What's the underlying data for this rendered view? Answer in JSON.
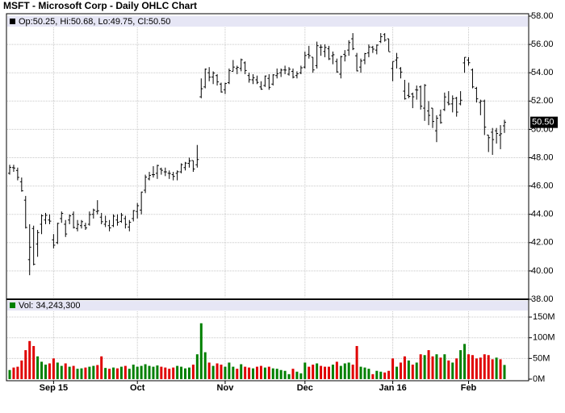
{
  "chart_data": [
    {
      "type": "ohlc",
      "title": "MSFT - Microsoft Corp - Daily OHLC Chart",
      "legend": "Op:50.25, Hi:50.68, Lo:49.75, Cl:50.50",
      "color": "#000000",
      "open": [
        46.9,
        47.3,
        47.1,
        46.3,
        45.0,
        40.8,
        43.0,
        41.9,
        43.3,
        43.6,
        43.6,
        42.2,
        42.0,
        43.7,
        43.3,
        43.6,
        44.0,
        43.0,
        43.2,
        43.2,
        43.3,
        44.0,
        44.2,
        43.8,
        43.3,
        43.2,
        43.2,
        43.6,
        43.5,
        43.7,
        43.1,
        43.7,
        44.2,
        44.3,
        45.7,
        46.5,
        46.8,
        46.9,
        47.2,
        47.0,
        46.9,
        46.8,
        46.9,
        47.0,
        47.3,
        47.6,
        47.8,
        47.5,
        52.3,
        53.0,
        54.0,
        53.7,
        53.8,
        53.2,
        52.8,
        53.3,
        54.1,
        54.3,
        54.3,
        54.7,
        53.8,
        53.5,
        53.5,
        53.0,
        53.1,
        53.6,
        53.2,
        53.8,
        54.0,
        54.2,
        53.9,
        54.1,
        53.8,
        54.0,
        54.4,
        55.3,
        55.1,
        54.5,
        55.8,
        55.5,
        55.7,
        55.2,
        54.8,
        53.9,
        55.3,
        55.6,
        56.4,
        55.2,
        54.4,
        54.9,
        55.4,
        55.8,
        55.6,
        56.2,
        56.7,
        56.4,
        54.3,
        54.9,
        54.3,
        52.7,
        52.4,
        52.5,
        52.8,
        53.0,
        51.5,
        51.3,
        51.5,
        49.9,
        51.0,
        51.4,
        51.9,
        51.8,
        52.2,
        51.8,
        54.7,
        54.9,
        54.2,
        52.9,
        51.9,
        52.0,
        49.6,
        49.8,
        49.9,
        49.6,
        50.25
      ],
      "high": [
        47.5,
        47.5,
        47.3,
        46.6,
        45.3,
        43.3,
        43.2,
        42.9,
        44.0,
        44.1,
        44.0,
        42.6,
        43.4,
        44.2,
        43.6,
        44.0,
        44.2,
        43.6,
        43.6,
        43.4,
        44.2,
        44.4,
        45.0,
        44.1,
        43.9,
        43.6,
        44.0,
        44.0,
        44.1,
        43.9,
        43.6,
        44.3,
        44.8,
        45.6,
        46.8,
        47.0,
        47.4,
        47.5,
        47.3,
        47.3,
        47.1,
        47.0,
        47.1,
        47.6,
        47.7,
        48.0,
        47.8,
        48.9,
        53.6,
        54.3,
        54.4,
        54.1,
        53.9,
        53.3,
        53.3,
        54.3,
        54.9,
        54.5,
        55.0,
        54.8,
        54.0,
        53.9,
        53.8,
        53.4,
        53.8,
        53.9,
        53.9,
        54.3,
        54.3,
        54.5,
        54.4,
        54.3,
        54.1,
        54.5,
        55.5,
        55.9,
        55.1,
        56.2,
        56.0,
        56.0,
        55.9,
        55.5,
        55.0,
        55.2,
        55.6,
        56.3,
        56.8,
        55.4,
        55.0,
        55.4,
        56.0,
        55.9,
        56.0,
        56.8,
        56.8,
        56.4,
        54.8,
        55.4,
        54.4,
        53.5,
        53.3,
        52.6,
        53.1,
        53.1,
        53.2,
        52.0,
        51.5,
        51.0,
        51.4,
        52.6,
        52.7,
        52.4,
        52.3,
        52.7,
        55.1,
        55.1,
        54.3,
        53.0,
        52.1,
        52.1,
        49.6,
        50.1,
        50.1,
        50.3,
        50.68
      ],
      "low": [
        46.8,
        47.0,
        46.4,
        45.6,
        43.0,
        39.7,
        40.4,
        41.0,
        42.6,
        43.3,
        43.3,
        41.6,
        41.9,
        43.4,
        42.4,
        43.3,
        43.0,
        42.8,
        43.0,
        42.9,
        43.2,
        43.7,
        44.0,
        43.3,
        43.1,
        42.8,
        43.1,
        43.2,
        43.4,
        43.0,
        42.8,
        43.5,
        43.7,
        44.0,
        45.5,
        46.4,
        46.6,
        46.5,
        46.8,
        46.7,
        46.5,
        46.4,
        46.4,
        46.9,
        47.1,
        47.3,
        47.0,
        47.3,
        52.2,
        52.9,
        53.4,
        53.2,
        53.1,
        52.6,
        52.5,
        53.2,
        54.1,
        53.9,
        54.1,
        53.9,
        53.3,
        53.2,
        53.2,
        52.8,
        53.0,
        52.8,
        53.1,
        53.6,
        53.7,
        53.9,
        53.8,
        53.6,
        53.6,
        53.9,
        54.3,
        55.0,
        54.0,
        54.3,
        55.2,
        55.1,
        54.9,
        54.6,
        54.0,
        53.6,
        54.8,
        55.2,
        55.6,
        54.1,
        54.0,
        54.6,
        55.1,
        55.4,
        55.3,
        56.1,
        56.2,
        55.5,
        53.4,
        54.3,
        53.6,
        52.1,
        52.2,
        51.5,
        52.1,
        51.4,
        50.6,
        50.3,
        50.1,
        49.1,
        50.4,
        51.3,
        51.7,
        51.2,
        50.9,
        51.7,
        54.0,
        54.5,
        52.9,
        51.9,
        51.0,
        49.6,
        48.4,
        48.2,
        49.0,
        48.6,
        49.75
      ],
      "close": [
        47.32,
        47.27,
        46.61,
        45.66,
        43.07,
        41.68,
        40.47,
        42.71,
        43.9,
        43.93,
        43.52,
        41.82,
        43.36,
        44.07,
        42.61,
        43.89,
        43.07,
        43.29,
        43.48,
        43.04,
        43.98,
        44.3,
        44.25,
        43.48,
        43.48,
        43.04,
        43.87,
        43.44,
        43.94,
        43.29,
        43.44,
        44.26,
        44.61,
        45.57,
        46.63,
        46.75,
        46.8,
        47.45,
        47.11,
        47.0,
        46.89,
        46.68,
        47.01,
        47.51,
        47.62,
        47.77,
        47.2,
        47.87,
        52.87,
        54.25,
        53.69,
        53.98,
        53.36,
        52.64,
        53.24,
        54.15,
        54.4,
        54.38,
        54.92,
        54.16,
        53.51,
        53.65,
        53.32,
        52.84,
        53.77,
        52.97,
        53.85,
        53.94,
        54.19,
        54.19,
        54.25,
        53.69,
        53.93,
        54.35,
        55.22,
        55.21,
        54.2,
        55.91,
        55.81,
        55.79,
        54.98,
        55.27,
        54.06,
        55.14,
        55.2,
        56.13,
        55.7,
        54.13,
        54.83,
        55.35,
        55.82,
        55.67,
        55.95,
        56.55,
        56.31,
        55.48,
        54.8,
        55.05,
        54.05,
        52.17,
        52.33,
        52.3,
        52.78,
        51.64,
        53.11,
        50.99,
        50.56,
        50.79,
        50.48,
        52.29,
        51.79,
        52.17,
        51.22,
        52.06,
        55.09,
        54.71,
        53.0,
        52.16,
        52.0,
        50.16,
        49.41,
        49.28,
        49.71,
        49.69,
        50.5
      ],
      "ylim": [
        38,
        58
      ],
      "yticks": [
        {
          "value": 38,
          "label": "38.00"
        },
        {
          "value": 40,
          "label": "40.00"
        },
        {
          "value": 42,
          "label": "42.00"
        },
        {
          "value": 44,
          "label": "44.00"
        },
        {
          "value": 46,
          "label": "46.00"
        },
        {
          "value": 48,
          "label": "48.00"
        },
        {
          "value": 50,
          "label": "50.00"
        },
        {
          "value": 52,
          "label": "52.00"
        },
        {
          "value": 54,
          "label": "54.00"
        },
        {
          "value": 56,
          "label": "56.00"
        },
        {
          "value": 58,
          "label": "58.00"
        }
      ],
      "last_price": {
        "value": 50.5,
        "label": "50.50"
      },
      "grid": true
    },
    {
      "type": "bar",
      "legend": "Vol: 34,243,300",
      "up_color": "#008000",
      "down_color": "#e00000",
      "categories": [
        null,
        null,
        null,
        null,
        null,
        null,
        null,
        null,
        null,
        null,
        null,
        "Sep 15",
        null,
        null,
        null,
        null,
        null,
        null,
        null,
        null,
        null,
        null,
        null,
        null,
        null,
        null,
        null,
        null,
        null,
        null,
        null,
        null,
        "Oct",
        null,
        null,
        null,
        null,
        null,
        null,
        null,
        null,
        null,
        null,
        null,
        null,
        null,
        null,
        null,
        null,
        null,
        null,
        null,
        null,
        null,
        "Nov",
        null,
        null,
        null,
        null,
        null,
        null,
        null,
        null,
        null,
        null,
        null,
        null,
        null,
        null,
        null,
        null,
        null,
        null,
        null,
        "Dec",
        null,
        null,
        null,
        null,
        null,
        null,
        null,
        null,
        null,
        null,
        null,
        null,
        null,
        null,
        null,
        null,
        null,
        null,
        null,
        null,
        null,
        "Jan 16",
        null,
        null,
        null,
        null,
        null,
        null,
        null,
        null,
        null,
        null,
        null,
        null,
        null,
        null,
        null,
        null,
        null,
        null,
        "Feb",
        null,
        null,
        null,
        null,
        null,
        null,
        null,
        null,
        null
      ],
      "values": [
        22000000,
        28000000,
        30000000,
        45000000,
        70000000,
        92000000,
        80000000,
        55000000,
        42000000,
        35000000,
        38000000,
        50000000,
        40000000,
        32000000,
        38000000,
        30000000,
        32000000,
        25000000,
        26000000,
        28000000,
        30000000,
        32000000,
        34000000,
        55000000,
        27000000,
        25000000,
        28000000,
        26000000,
        30000000,
        32000000,
        25000000,
        35000000,
        30000000,
        32000000,
        36000000,
        32000000,
        30000000,
        33000000,
        30000000,
        28000000,
        25000000,
        28000000,
        32000000,
        30000000,
        26000000,
        28000000,
        35000000,
        60000000,
        135000000,
        65000000,
        40000000,
        32000000,
        38000000,
        35000000,
        30000000,
        40000000,
        30000000,
        25000000,
        36000000,
        30000000,
        28000000,
        26000000,
        30000000,
        32000000,
        28000000,
        30000000,
        26000000,
        25000000,
        22000000,
        20000000,
        12000000,
        25000000,
        18000000,
        14000000,
        40000000,
        30000000,
        35000000,
        38000000,
        32000000,
        30000000,
        30000000,
        35000000,
        42000000,
        32000000,
        38000000,
        40000000,
        35000000,
        80000000,
        30000000,
        28000000,
        25000000,
        12000000,
        20000000,
        18000000,
        16000000,
        20000000,
        50000000,
        30000000,
        40000000,
        55000000,
        45000000,
        35000000,
        40000000,
        60000000,
        58000000,
        70000000,
        55000000,
        60000000,
        52000000,
        60000000,
        45000000,
        40000000,
        50000000,
        70000000,
        85000000,
        60000000,
        58000000,
        50000000,
        52000000,
        60000000,
        58000000,
        48000000,
        52000000,
        48000000,
        34243300
      ],
      "ylim": [
        0,
        193000000
      ],
      "yticks": [
        {
          "value": 0,
          "label": "0M"
        },
        {
          "value": 50000000,
          "label": "50M"
        },
        {
          "value": 100000000,
          "label": "100M"
        },
        {
          "value": 150000000,
          "label": "150M"
        }
      ]
    }
  ]
}
